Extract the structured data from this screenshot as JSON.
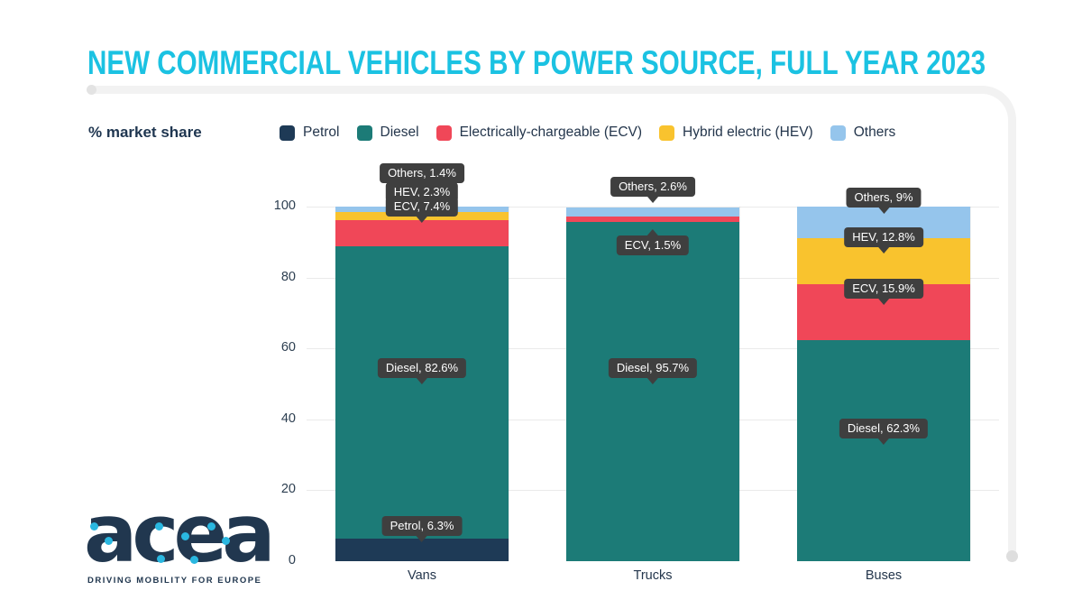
{
  "title": "NEW COMMERCIAL VEHICLES BY POWER SOURCE, FULL YEAR 2023",
  "logo": {
    "wordmark": "acea",
    "tagline": "DRIVING MOBILITY FOR EUROPE"
  },
  "colors": {
    "accent_cyan": "#1bc2e2",
    "navy": "#1e3a56",
    "teal": "#1c7b77",
    "red": "#f04758",
    "yellow": "#f9c32e",
    "light_blue": "#95c5ec",
    "callout_bg": "#3f3f3f"
  },
  "chart_data": {
    "type": "bar",
    "stacked": true,
    "title": "NEW COMMERCIAL VEHICLES BY POWER SOURCE, FULL YEAR 2023",
    "ylabel": "% market share",
    "xlabel": "",
    "categories": [
      "Vans",
      "Trucks",
      "Buses"
    ],
    "series": [
      {
        "name": "Petrol",
        "color": "#1e3a56",
        "values": [
          6.3,
          0,
          0
        ]
      },
      {
        "name": "Diesel",
        "color": "#1c7b77",
        "values": [
          82.6,
          95.7,
          62.3
        ]
      },
      {
        "name": "Electrically-chargeable (ECV)",
        "color": "#f04758",
        "values": [
          7.4,
          1.5,
          15.9
        ]
      },
      {
        "name": "Hybrid electric (HEV)",
        "color": "#f9c32e",
        "values": [
          2.3,
          0,
          12.8
        ]
      },
      {
        "name": "Others",
        "color": "#95c5ec",
        "values": [
          1.4,
          2.6,
          9
        ]
      }
    ],
    "ylim": [
      0,
      100
    ],
    "yticks": [
      0,
      20,
      40,
      60,
      80,
      100
    ],
    "grid": true,
    "legend_position": "top",
    "callouts": [
      {
        "category": "Vans",
        "text": "Others, 1.4%",
        "y_pct": 109.4,
        "pointer": "down"
      },
      {
        "category": "Vans",
        "text": "HEV, 2.3%",
        "y_pct": 104.1,
        "pointer": "down"
      },
      {
        "category": "Vans",
        "text": "ECV, 7.4%",
        "y_pct": 99.9,
        "pointer": "down"
      },
      {
        "category": "Vans",
        "text": "Diesel, 82.6%",
        "y_pct": 54.5,
        "pointer": "down"
      },
      {
        "category": "Vans",
        "text": "Petrol, 6.3%",
        "y_pct": 9.8,
        "pointer": "down"
      },
      {
        "category": "Trucks",
        "text": "Others, 2.6%",
        "y_pct": 105.6,
        "pointer": "down"
      },
      {
        "category": "Trucks",
        "text": "ECV, 1.5%",
        "y_pct": 89.1,
        "pointer": "up"
      },
      {
        "category": "Trucks",
        "text": "Diesel, 95.7%",
        "y_pct": 54.5,
        "pointer": "down"
      },
      {
        "category": "Buses",
        "text": "Others, 9%",
        "y_pct": 102.5,
        "pointer": "down"
      },
      {
        "category": "Buses",
        "text": "HEV, 12.8%",
        "y_pct": 91.3,
        "pointer": "down"
      },
      {
        "category": "Buses",
        "text": "ECV, 15.9%",
        "y_pct": 76.8,
        "pointer": "down"
      },
      {
        "category": "Buses",
        "text": "Diesel, 62.3%",
        "y_pct": 37.4,
        "pointer": "down"
      }
    ]
  }
}
